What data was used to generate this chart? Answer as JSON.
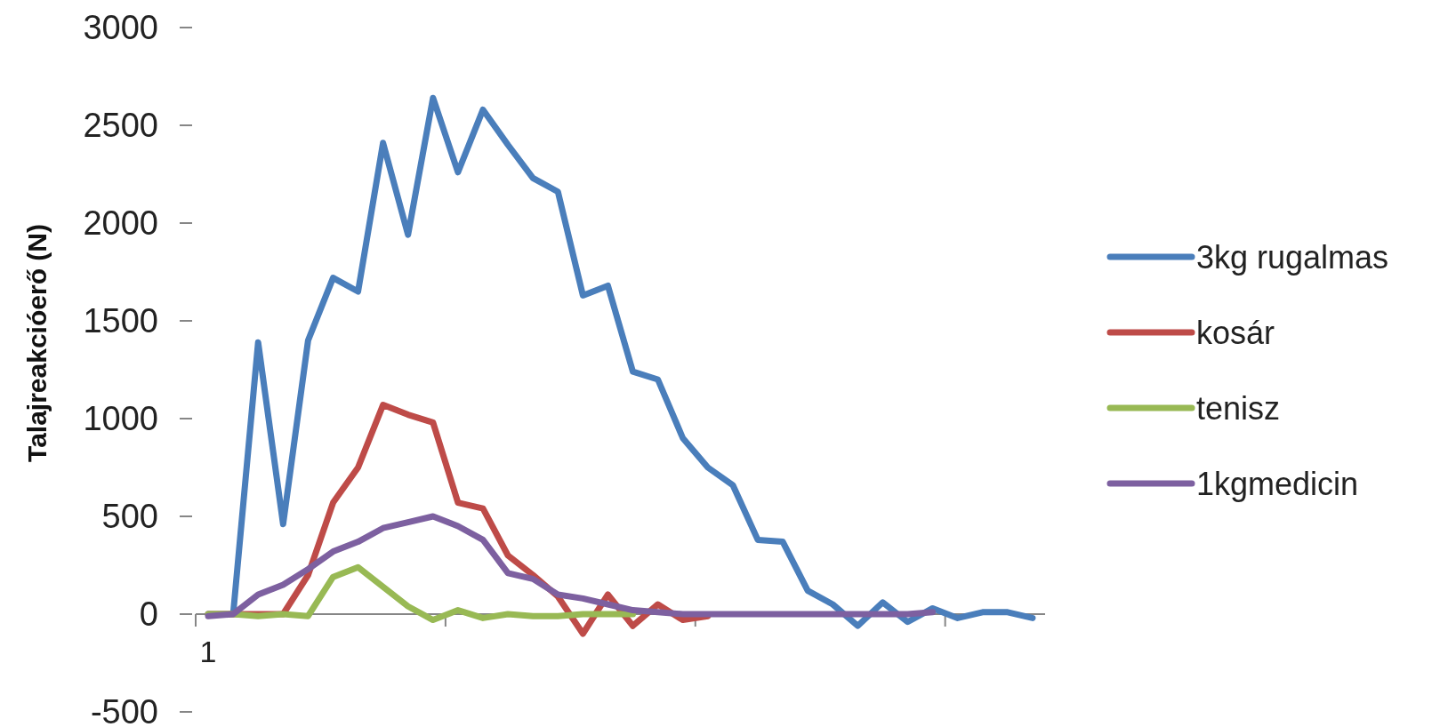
{
  "chart_data": {
    "type": "line",
    "ylabel": "Talajreakcióerő (N)",
    "categories": [
      "1",
      null,
      null,
      null,
      null,
      null,
      null,
      null,
      null,
      null,
      null,
      null,
      null,
      null,
      null,
      null,
      null,
      null,
      null,
      null,
      null,
      null,
      null,
      null,
      null,
      null,
      null,
      null,
      null,
      null,
      null,
      null,
      null,
      null
    ],
    "ylim": [
      -500,
      3000
    ],
    "yticks": [
      -500,
      0,
      500,
      1000,
      1500,
      2000,
      2500,
      3000
    ],
    "legend": "right",
    "series": [
      {
        "name": "3kg rugalmas",
        "color": "#4a7ebb",
        "values": [
          0,
          0,
          1390,
          460,
          1400,
          1720,
          1650,
          2410,
          1940,
          2640,
          2260,
          2580,
          2400,
          2230,
          2160,
          1630,
          1680,
          1240,
          1200,
          900,
          750,
          660,
          380,
          370,
          120,
          50,
          -60,
          60,
          -40,
          30,
          -20,
          10,
          10,
          -20
        ]
      },
      {
        "name": "kosár",
        "color": "#be4b48",
        "values": [
          0,
          0,
          0,
          0,
          200,
          570,
          750,
          1070,
          1020,
          980,
          570,
          540,
          300,
          200,
          90,
          -100,
          100,
          -60,
          50,
          -30,
          -10,
          null,
          null,
          null,
          null,
          null,
          null,
          null,
          null,
          null,
          null,
          null,
          null,
          null
        ]
      },
      {
        "name": "tenisz",
        "color": "#98b954",
        "values": [
          0,
          0,
          -10,
          0,
          -10,
          190,
          240,
          140,
          40,
          -30,
          20,
          -20,
          0,
          -10,
          -10,
          0,
          0,
          0,
          null,
          null,
          null,
          null,
          null,
          null,
          null,
          null,
          null,
          null,
          null,
          null,
          null,
          null,
          null,
          null
        ]
      },
      {
        "name": "1kgmedicin",
        "color": "#7d60a0",
        "values": [
          -10,
          0,
          100,
          150,
          230,
          320,
          370,
          440,
          470,
          500,
          450,
          380,
          210,
          180,
          100,
          80,
          50,
          20,
          10,
          0,
          0,
          0,
          0,
          0,
          0,
          0,
          0,
          0,
          0,
          10,
          null,
          null,
          null,
          null
        ]
      }
    ]
  }
}
